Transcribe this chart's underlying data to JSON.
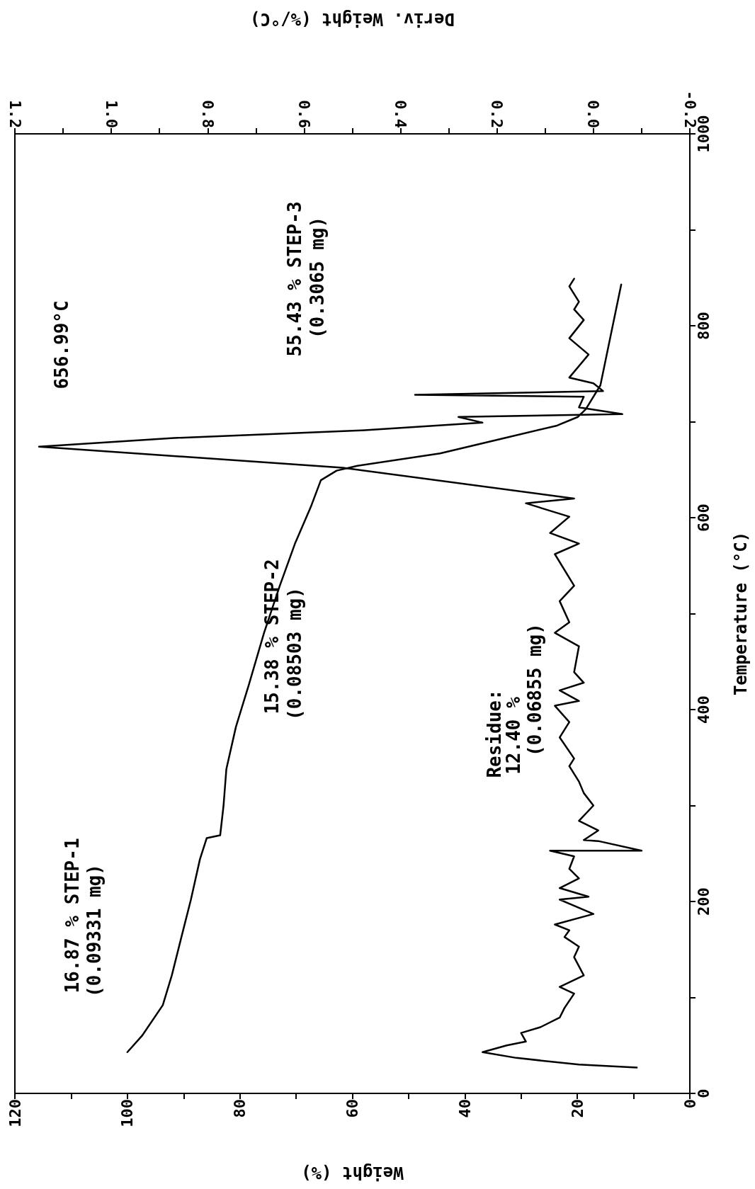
{
  "chart_data": {
    "type": "line",
    "xlabel": "Weight (%)",
    "x2label": "Deriv. Weight (%/°C)",
    "ylabel": "Temperature (°C)",
    "xlim": [
      120,
      0
    ],
    "xticks": [
      0,
      {
        "value": 10,
        "label": null
      },
      20,
      {
        "value": 30,
        "label": null
      },
      40,
      {
        "value": 50,
        "label": null
      },
      60,
      {
        "value": 70,
        "label": null
      },
      80,
      {
        "value": 90,
        "label": null
      },
      100,
      {
        "value": 110,
        "label": null
      },
      120
    ],
    "x2lim": [
      1.2,
      -0.2
    ],
    "x2ticks": [
      -0.2,
      {
        "value": -0.1,
        "label": null
      },
      {
        "value": 0,
        "label": "0.0"
      },
      {
        "value": 0.1,
        "label": null
      },
      0.2,
      {
        "value": 0.3,
        "label": null
      },
      0.4,
      {
        "value": 0.5,
        "label": null
      },
      0.6,
      {
        "value": 0.7,
        "label": null
      },
      0.8,
      {
        "value": 0.9,
        "label": null
      },
      {
        "value": 1,
        "label": "1.0"
      },
      {
        "value": 1.1,
        "label": null
      },
      1.2
    ],
    "ylim": [
      0,
      1000
    ],
    "yticks": [
      0,
      {
        "value": 100,
        "label": null
      },
      200,
      {
        "value": 300,
        "label": null
      },
      400,
      {
        "value": 500,
        "label": null
      },
      600,
      {
        "value": 700,
        "label": null
      },
      800,
      {
        "value": 900,
        "label": null
      },
      1000
    ],
    "grid": false,
    "marker": "none",
    "line_style": "solid",
    "series": [
      {
        "color": "#000000",
        "x": [
          100,
          97.4,
          93.7,
          92.1,
          90.3,
          88.7,
          87.1,
          85.9,
          83.5,
          82.9,
          82.4,
          80.7,
          78.4,
          75.7,
          72.9,
          70.2,
          67.4,
          65.6,
          62.8,
          59.1,
          44.4,
          32.9,
          23.6,
          19.9,
          18.5,
          15.9,
          12.2
        ],
        "values": [
          43,
          60,
          92,
          123,
          165,
          202,
          244,
          266,
          269,
          300,
          338,
          382,
          426,
          480,
          529,
          573,
          611,
          639,
          649,
          654,
          667,
          683,
          696,
          705,
          713,
          738,
          843
        ]
      },
      {
        "color": "#000000",
        "axis": "x2",
        "x": [
          -0.09,
          0.03,
          0.16,
          0.23,
          0.18,
          0.14,
          0.15,
          0.11,
          0.07,
          0.06,
          0.04,
          0.07,
          0.02,
          0.04,
          0.03,
          0.06,
          0.05,
          0.08,
          0.0,
          0.07,
          0.01,
          0.07,
          0.03,
          0.05,
          0.04,
          0.09,
          -0.1,
          -0.01,
          0.02,
          -0.01,
          0.03,
          0.0,
          0.02,
          0.03,
          0.05,
          0.04,
          0.07,
          0.05,
          0.08,
          0.03,
          0.07,
          0.02,
          0.04,
          0.03,
          0.08,
          0.05,
          0.07,
          0.04,
          0.08,
          0.03,
          0.09,
          0.05,
          0.14,
          0.04,
          0.52,
          1.15,
          0.87,
          0.48,
          0.23,
          0.28,
          -0.06,
          0.03,
          0.02,
          0.37,
          -0.02,
          0.0,
          0.05,
          0.01,
          0.05,
          0.02,
          0.04,
          0.03,
          0.05,
          0.04
        ],
        "values": [
          27,
          30,
          37,
          43,
          50,
          54,
          63,
          69,
          79,
          89,
          104,
          111,
          123,
          142,
          153,
          163,
          170,
          176,
          187,
          202,
          205,
          214,
          224,
          234,
          247,
          253,
          253,
          263,
          264,
          274,
          284,
          300,
          313,
          325,
          341,
          349,
          371,
          387,
          404,
          409,
          420,
          428,
          439,
          466,
          480,
          491,
          513,
          529,
          562,
          573,
          584,
          601,
          615,
          620,
          652,
          674,
          683,
          691,
          699,
          705,
          708,
          715,
          726,
          728,
          732,
          740,
          746,
          770,
          787,
          806,
          817,
          825,
          841,
          849
        ]
      }
    ],
    "annotations": [
      "656.99°C",
      "55.43 % STEP-3",
      "(0.3065 mg)",
      "15.38 % STEP-2",
      "(0.08503 mg)",
      "16.87 % STEP-1",
      "(0.09331 mg)",
      "Residue:",
      "12.40 %",
      "(0.06855 mg)"
    ]
  }
}
